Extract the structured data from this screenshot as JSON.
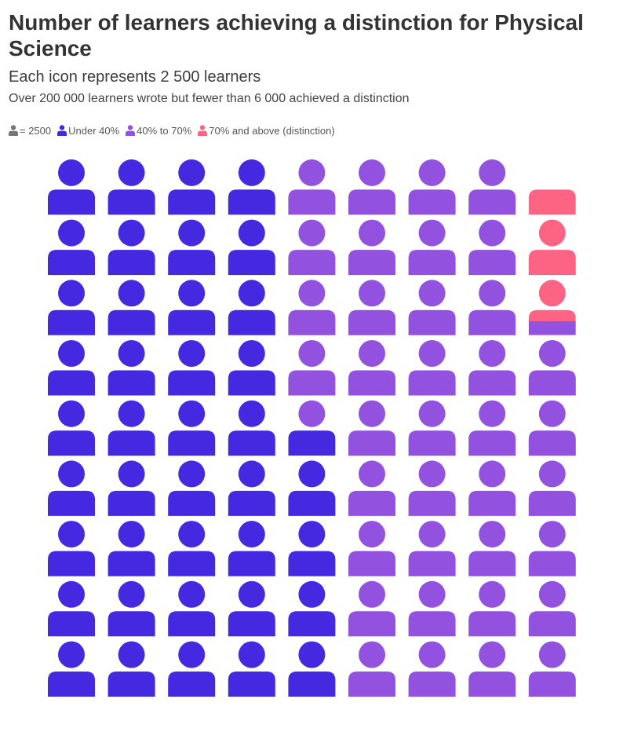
{
  "chart_data": {
    "type": "pictograph",
    "title": "Number of learners achieving a distinction for Physical Science",
    "subtitle": "Each icon represents 2 500 learners",
    "note": "Over 200 000 learners wrote but fewer than 6 000 achieved a distinction",
    "unit_value": 2500,
    "unit_legend": "= 2500",
    "columns": 9,
    "rows": 9,
    "fill_order": "bottom-to-top, left-to-right, each category continues after the previous",
    "series": [
      {
        "name": "Under 40%",
        "icons": 40.5,
        "color": "#4429e0"
      },
      {
        "name": "40% to 70%",
        "icons": 37.75,
        "color": "#9351e0"
      },
      {
        "name": "70% and above (distinction)",
        "icons": 2.25,
        "color": "#fd6382"
      }
    ],
    "unit_icon_color": "#777777"
  }
}
